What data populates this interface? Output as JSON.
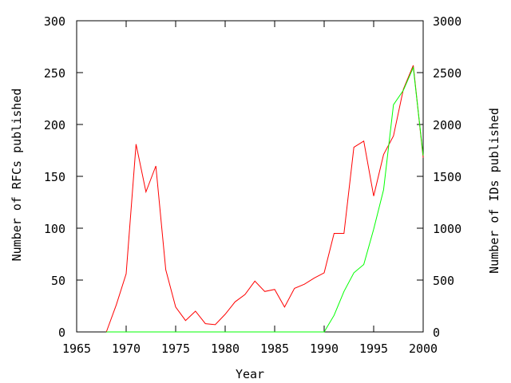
{
  "chart_data": {
    "type": "line",
    "xlabel": "Year",
    "ylabel_left": "Number of RFCs published",
    "ylabel_right": "Number of IDs published",
    "xlim": [
      1965,
      2000
    ],
    "ylim_left": [
      0,
      300
    ],
    "ylim_right": [
      0,
      3000
    ],
    "x_ticks": [
      1965,
      1970,
      1975,
      1980,
      1985,
      1990,
      1995,
      2000
    ],
    "y_ticks_left": [
      0,
      50,
      100,
      150,
      200,
      250,
      300
    ],
    "y_ticks_right": [
      0,
      500,
      1000,
      1500,
      2000,
      2500,
      3000
    ],
    "grid": false,
    "legend": "none",
    "series": [
      {
        "axis": "left",
        "color": "#ff0000",
        "x": [
          1968,
          1969,
          1970,
          1971,
          1972,
          1973,
          1974,
          1975,
          1976,
          1977,
          1978,
          1979,
          1980,
          1981,
          1982,
          1983,
          1984,
          1985,
          1986,
          1987,
          1988,
          1989,
          1990,
          1991,
          1992,
          1993,
          1994,
          1995,
          1996,
          1997,
          1998,
          1999,
          2000
        ],
        "values": [
          0,
          26,
          56,
          181,
          135,
          160,
          60,
          24,
          11,
          20,
          8,
          7,
          17,
          29,
          36,
          49,
          39,
          41,
          24,
          42,
          46,
          52,
          57,
          95,
          95,
          178,
          184,
          131,
          171,
          189,
          234,
          257,
          168
        ]
      },
      {
        "axis": "right",
        "color": "#00ff00",
        "x": [
          1968,
          1990,
          1991,
          1992,
          1993,
          1994,
          1995,
          1996,
          1997,
          1998,
          1999,
          2000
        ],
        "values": [
          0,
          0,
          160,
          390,
          570,
          650,
          990,
          1370,
          2190,
          2330,
          2550,
          1700
        ]
      }
    ]
  }
}
